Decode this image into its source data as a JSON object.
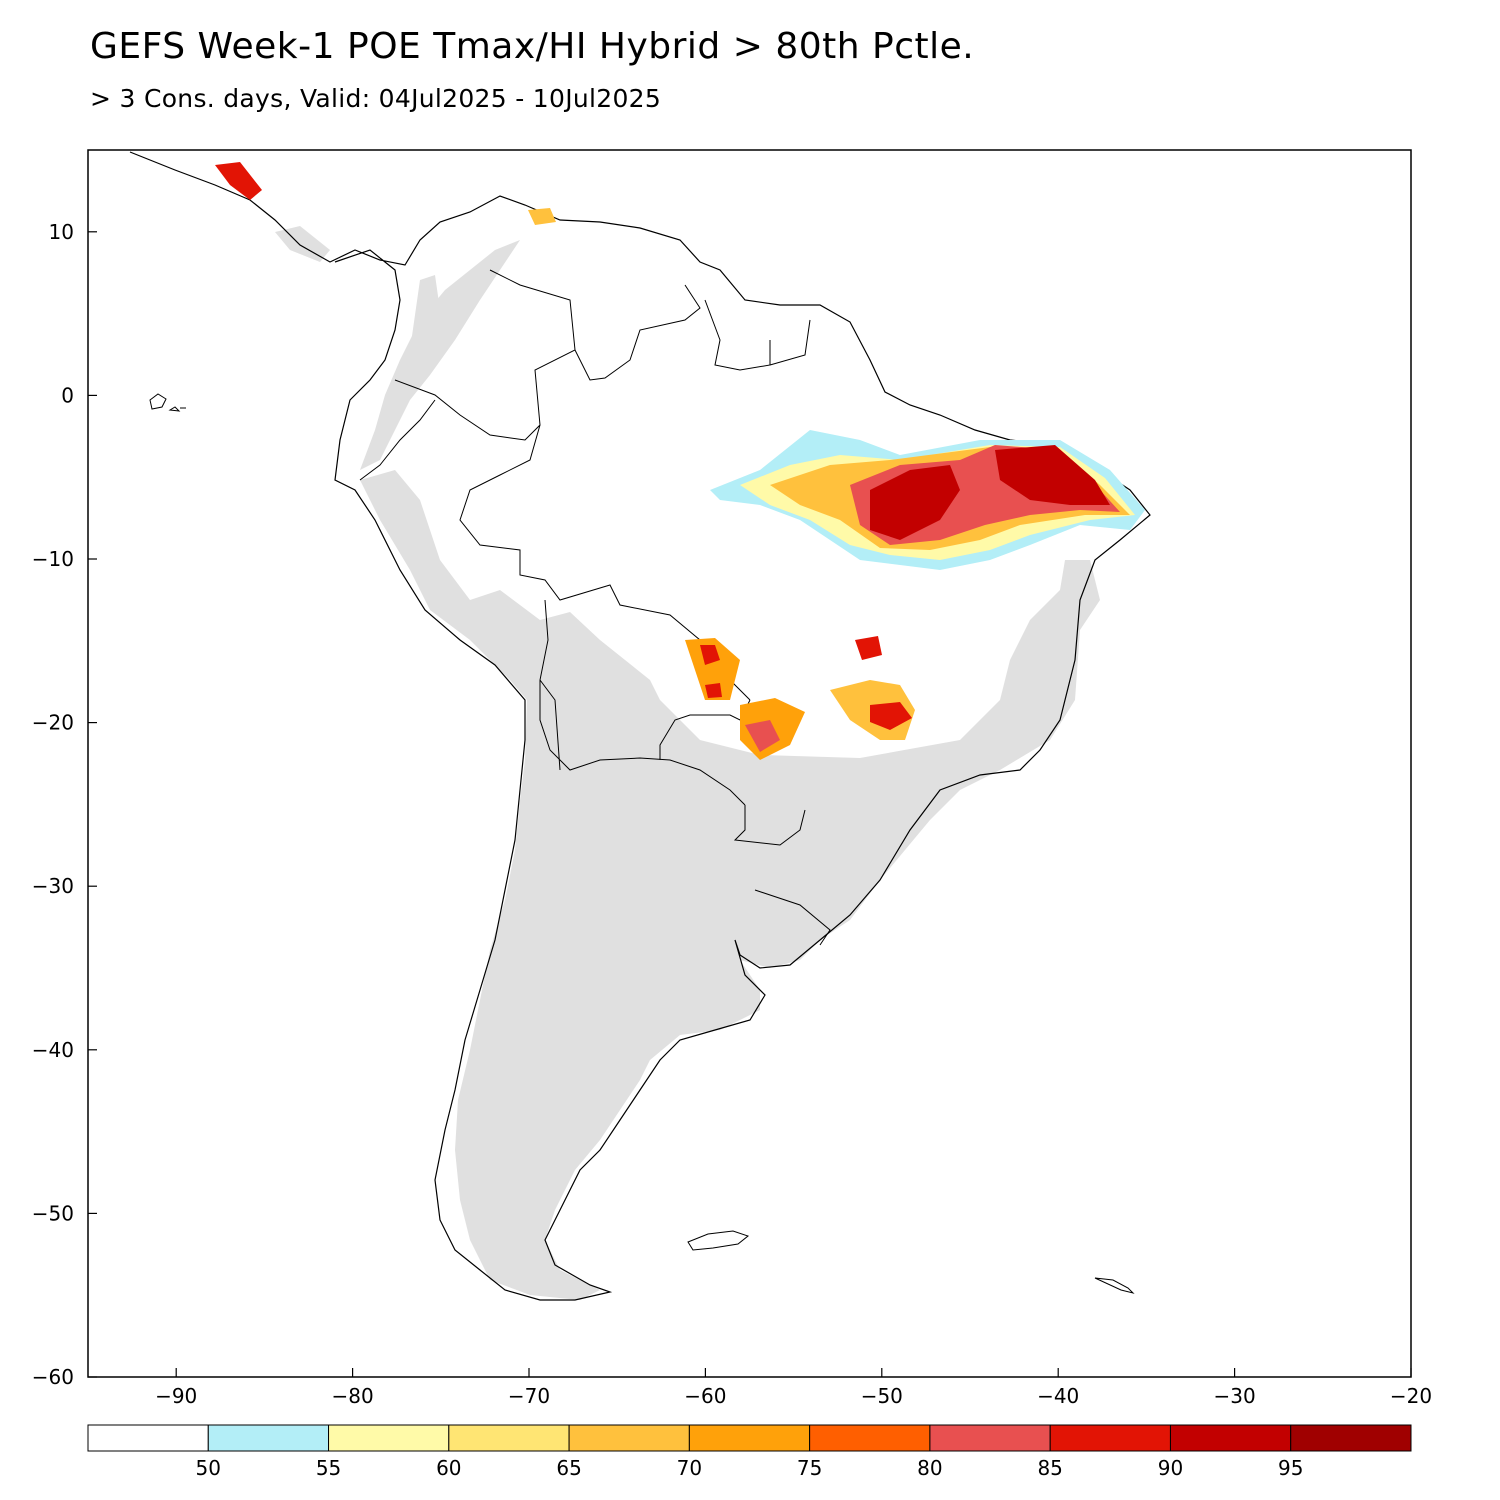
{
  "header": {
    "title": "GEFS Week-1 POE Tmax/HI Hybrid > 80th Pctle.",
    "subtitle": "> 3 Cons. days, Valid: 04Jul2025 - 10Jul2025"
  },
  "map": {
    "lon_range": [
      -95,
      -20
    ],
    "lat_range": [
      -60,
      15
    ],
    "x_ticks": [
      -90,
      -80,
      -70,
      -60,
      -50,
      -40,
      -30,
      -20
    ],
    "y_ticks": [
      10,
      0,
      -10,
      -20,
      -30,
      -40,
      -50,
      -60
    ],
    "land_color": "#e0e0e0",
    "coast_color": "#000000"
  },
  "legend": {
    "bins": [
      {
        "color": "#ffffff"
      },
      {
        "color": "#b3eef7"
      },
      {
        "color": "#fffaa8"
      },
      {
        "color": "#ffe573"
      },
      {
        "color": "#ffc13d"
      },
      {
        "color": "#ffa10a"
      },
      {
        "color": "#ff5f00"
      },
      {
        "color": "#e85050"
      },
      {
        "color": "#e21405"
      },
      {
        "color": "#c20000"
      },
      {
        "color": "#a00000"
      }
    ],
    "labels": [
      "50",
      "55",
      "60",
      "65",
      "70",
      "75",
      "80",
      "85",
      "90",
      "95"
    ]
  }
}
